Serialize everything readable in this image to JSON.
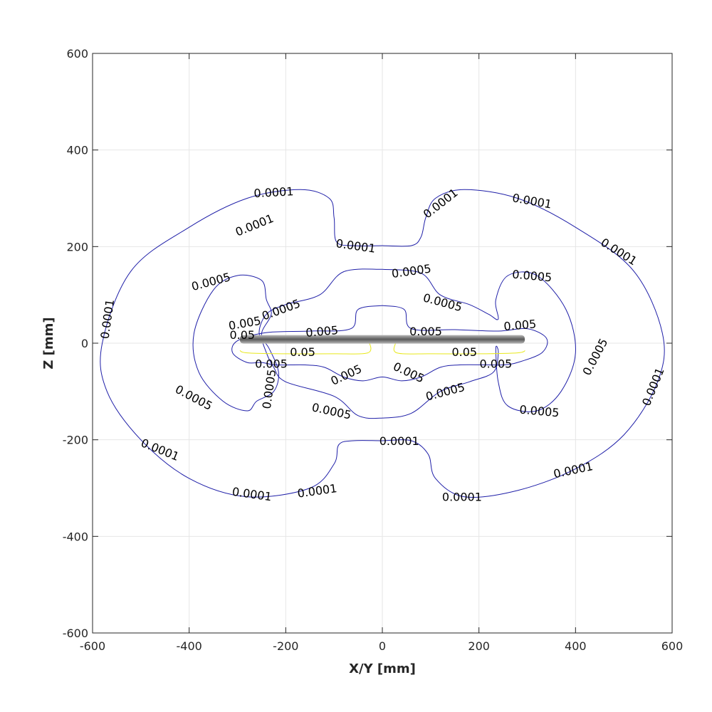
{
  "chart_data": {
    "type": "contour",
    "title": "",
    "xlabel": "X/Y [mm]",
    "ylabel": "Z [mm]",
    "xlim": [
      -600,
      600
    ],
    "ylim": [
      -600,
      600
    ],
    "xticks": [
      "-600",
      "-400",
      "-200",
      "0",
      "200",
      "400",
      "600"
    ],
    "yticks": [
      "-600",
      "-400",
      "-200",
      "0",
      "200",
      "400",
      "600"
    ],
    "grid": true,
    "legend": "none",
    "colors": {
      "blue_contour": "#1f1fa8",
      "yellow_contour": "#e8e81a",
      "bar": "#5a5a5a",
      "grid": "#e6e6e6",
      "axis": "#262626"
    },
    "bar": {
      "x": [
        -295,
        295
      ],
      "z": 8
    },
    "levels": [
      {
        "level": 0.0001,
        "color": "#1f1fa8",
        "points": [
          [
            0,
            202
          ],
          [
            -60,
            202
          ],
          [
            -95,
            210
          ],
          [
            -100,
            260
          ],
          [
            -110,
            300
          ],
          [
            -170,
            318
          ],
          [
            -280,
            300
          ],
          [
            -400,
            240
          ],
          [
            -520,
            150
          ],
          [
            -580,
            0
          ],
          [
            -570,
            -100
          ],
          [
            -500,
            -200
          ],
          [
            -400,
            -280
          ],
          [
            -280,
            -318
          ],
          [
            -150,
            -300
          ],
          [
            -100,
            -250
          ],
          [
            -90,
            -210
          ],
          [
            -60,
            -202
          ],
          [
            0,
            -202
          ],
          [
            60,
            -202
          ],
          [
            95,
            -230
          ],
          [
            110,
            -280
          ],
          [
            170,
            -318
          ],
          [
            280,
            -305
          ],
          [
            400,
            -260
          ],
          [
            500,
            -190
          ],
          [
            570,
            -80
          ],
          [
            580,
            20
          ],
          [
            520,
            150
          ],
          [
            400,
            240
          ],
          [
            280,
            300
          ],
          [
            170,
            318
          ],
          [
            110,
            300
          ],
          [
            90,
            260
          ],
          [
            80,
            220
          ],
          [
            60,
            202
          ],
          [
            0,
            202
          ]
        ],
        "labels": [
          {
            "text": "0.0001",
            "x": -265,
            "y": 245,
            "angle": -22
          },
          {
            "text": "0.0001",
            "x": -225,
            "y": 313,
            "angle": -3
          },
          {
            "text": "0.0001",
            "x": -55,
            "y": 202,
            "angle": 8
          },
          {
            "text": "0.0001",
            "x": 120,
            "y": 290,
            "angle": -38
          },
          {
            "text": "0.0001",
            "x": 310,
            "y": 295,
            "angle": 10
          },
          {
            "text": "0.0001",
            "x": 490,
            "y": 190,
            "angle": 32
          },
          {
            "text": "0.0001",
            "x": -570,
            "y": 50,
            "angle": -82
          },
          {
            "text": "0.0001",
            "x": -460,
            "y": -220,
            "angle": 22
          },
          {
            "text": "0.0001",
            "x": -270,
            "y": -312,
            "angle": 8
          },
          {
            "text": "0.0001",
            "x": -135,
            "y": -305,
            "angle": -8
          },
          {
            "text": "0.0001",
            "x": 35,
            "y": -202,
            "angle": 0
          },
          {
            "text": "0.0001",
            "x": 165,
            "y": -318,
            "angle": 0
          },
          {
            "text": "0.0001",
            "x": 395,
            "y": -262,
            "angle": -12
          },
          {
            "text": "0.0001",
            "x": 560,
            "y": -90,
            "angle": -68
          }
        ]
      },
      {
        "level": 0.0005,
        "color": "#1f1fa8",
        "points": [
          [
            0,
            153
          ],
          [
            -80,
            148
          ],
          [
            -130,
            100
          ],
          [
            -200,
            80
          ],
          [
            -240,
            60
          ],
          [
            -255,
            20
          ],
          [
            -235,
            -10
          ],
          [
            -215,
            -60
          ],
          [
            -225,
            -100
          ],
          [
            -260,
            -120
          ],
          [
            -280,
            -140
          ],
          [
            -330,
            -120
          ],
          [
            -380,
            -60
          ],
          [
            -390,
            20
          ],
          [
            -350,
            110
          ],
          [
            -300,
            140
          ],
          [
            -250,
            130
          ],
          [
            -240,
            90
          ],
          [
            -230,
            60
          ],
          [
            -250,
            20
          ],
          [
            -240,
            -20
          ],
          [
            -225,
            -50
          ],
          [
            -200,
            -80
          ],
          [
            -100,
            -110
          ],
          [
            -50,
            -150
          ],
          [
            0,
            -155
          ],
          [
            60,
            -145
          ],
          [
            120,
            -100
          ],
          [
            180,
            -80
          ],
          [
            230,
            -60
          ],
          [
            240,
            -20
          ],
          [
            235,
            -10
          ],
          [
            240,
            -80
          ],
          [
            260,
            -130
          ],
          [
            320,
            -140
          ],
          [
            370,
            -100
          ],
          [
            400,
            -20
          ],
          [
            380,
            70
          ],
          [
            320,
            140
          ],
          [
            260,
            140
          ],
          [
            235,
            90
          ],
          [
            240,
            50
          ],
          [
            220,
            60
          ],
          [
            180,
            80
          ],
          [
            120,
            100
          ],
          [
            80,
            145
          ],
          [
            0,
            153
          ]
        ],
        "labels": [
          {
            "text": "0.0005",
            "x": -355,
            "y": 128,
            "angle": -15
          },
          {
            "text": "0.0005",
            "x": -210,
            "y": 70,
            "angle": -20
          },
          {
            "text": "0.0005",
            "x": 60,
            "y": 150,
            "angle": -8
          },
          {
            "text": "0.0005",
            "x": 125,
            "y": 85,
            "angle": 15
          },
          {
            "text": "0.0005",
            "x": 310,
            "y": 140,
            "angle": 5
          },
          {
            "text": "0.0005",
            "x": 440,
            "y": -28,
            "angle": -62
          },
          {
            "text": "0.0005",
            "x": -390,
            "y": -112,
            "angle": 28
          },
          {
            "text": "0.0005",
            "x": -105,
            "y": -140,
            "angle": 12
          },
          {
            "text": "0.0005",
            "x": 130,
            "y": -100,
            "angle": -15
          },
          {
            "text": "0.0005",
            "x": 325,
            "y": -140,
            "angle": 5
          },
          {
            "text": "0.0005",
            "x": -235,
            "y": -95,
            "angle": -82
          }
        ]
      },
      {
        "level": 0.005,
        "color": "#1f1fa8",
        "points": [
          [
            0,
            78
          ],
          [
            -50,
            70
          ],
          [
            -65,
            30
          ],
          [
            -150,
            25
          ],
          [
            -240,
            22
          ],
          [
            -300,
            5
          ],
          [
            -310,
            -20
          ],
          [
            -280,
            -40
          ],
          [
            -250,
            -40
          ],
          [
            -220,
            -45
          ],
          [
            -160,
            -45
          ],
          [
            -120,
            -50
          ],
          [
            -80,
            -70
          ],
          [
            -40,
            -78
          ],
          [
            0,
            -70
          ],
          [
            40,
            -78
          ],
          [
            80,
            -70
          ],
          [
            120,
            -50
          ],
          [
            160,
            -45
          ],
          [
            220,
            -45
          ],
          [
            250,
            -45
          ],
          [
            280,
            -40
          ],
          [
            330,
            -20
          ],
          [
            340,
            10
          ],
          [
            300,
            30
          ],
          [
            240,
            25
          ],
          [
            150,
            28
          ],
          [
            60,
            30
          ],
          [
            45,
            70
          ],
          [
            0,
            78
          ]
        ],
        "labels": [
          {
            "text": "0.005",
            "x": -285,
            "y": 42,
            "angle": -10
          },
          {
            "text": "0.005",
            "x": -125,
            "y": 25,
            "angle": -5
          },
          {
            "text": "0.005",
            "x": 90,
            "y": 25,
            "angle": 0
          },
          {
            "text": "0.005",
            "x": 285,
            "y": 38,
            "angle": -5
          },
          {
            "text": "0.005",
            "x": -230,
            "y": -42,
            "angle": 0
          },
          {
            "text": "0.005",
            "x": -75,
            "y": -65,
            "angle": -25
          },
          {
            "text": "0.005",
            "x": 55,
            "y": -60,
            "angle": 25
          },
          {
            "text": "0.005",
            "x": 235,
            "y": -42,
            "angle": 0
          }
        ]
      },
      {
        "level": 0.05,
        "color": "#e8e81a",
        "points": [
          [
            -295,
            -15
          ],
          [
            -280,
            -20
          ],
          [
            -200,
            -22
          ],
          [
            -100,
            -22
          ],
          [
            -30,
            -20
          ],
          [
            -27,
            0
          ],
          [
            -30,
            -20
          ],
          [
            -100,
            -22
          ],
          [
            -200,
            -22
          ],
          [
            -280,
            -20
          ],
          [
            -295,
            -15
          ]
        ],
        "points_right": [
          [
            27,
            0
          ],
          [
            30,
            -20
          ],
          [
            100,
            -22
          ],
          [
            200,
            -22
          ],
          [
            280,
            -20
          ],
          [
            295,
            -15
          ],
          [
            280,
            -20
          ],
          [
            200,
            -22
          ],
          [
            100,
            -22
          ],
          [
            30,
            -20
          ],
          [
            27,
            0
          ]
        ],
        "labels": [
          {
            "text": "0.05",
            "x": -290,
            "y": 18,
            "angle": 0
          },
          {
            "text": "0.05",
            "x": -165,
            "y": -18,
            "angle": 0
          },
          {
            "text": "0.05",
            "x": 170,
            "y": -18,
            "angle": 0
          }
        ]
      }
    ]
  }
}
